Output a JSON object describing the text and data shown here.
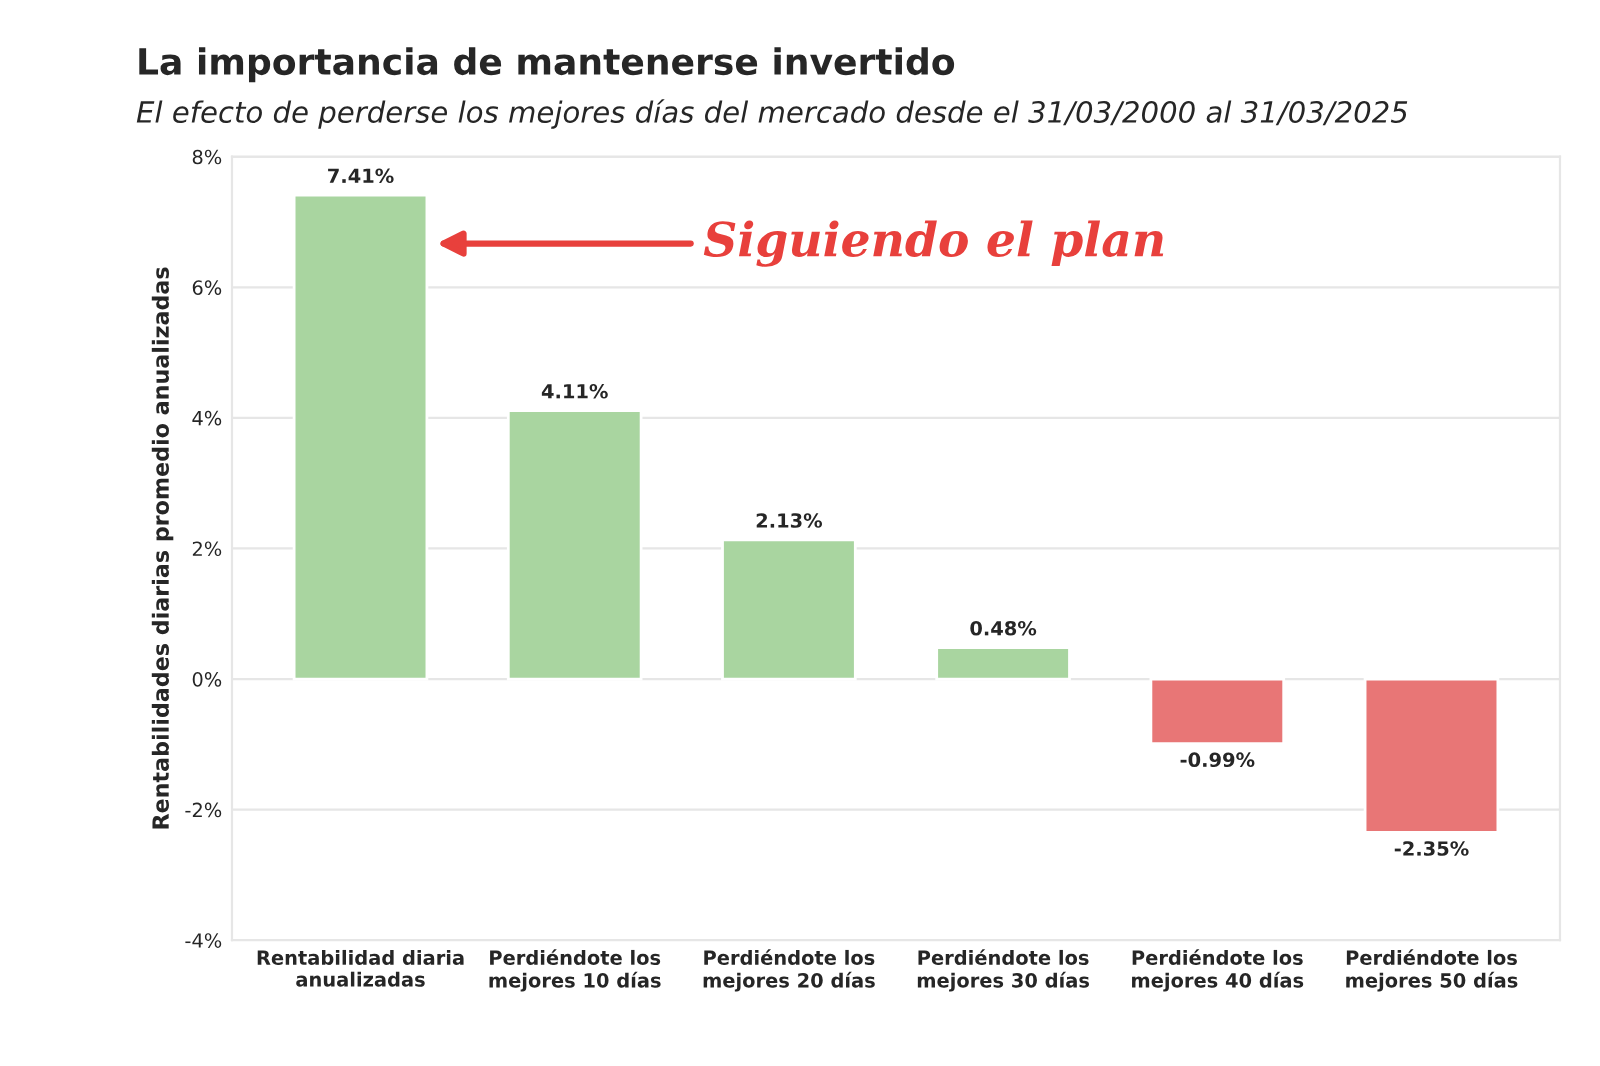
{
  "chart_data": {
    "type": "bar",
    "title": "La importancia de mantenerse invertido",
    "subtitle": "El efecto de perderse los mejores días del mercado desde el 31/03/2000 al 31/03/2025",
    "ylabel": "Rentabilidades diarias promedio anualizadas",
    "categories": [
      "Rentabilidad diaria\nanualizadas",
      "Perdiéndote los\nmejores 10 días",
      "Perdiéndote los\nmejores 20 días",
      "Perdiéndote los\nmejores 30 días",
      "Perdiéndote los\nmejores 40 días",
      "Perdiéndote los\nmejores 50 días"
    ],
    "values": [
      7.41,
      4.11,
      2.13,
      0.48,
      -0.99,
      -2.35
    ],
    "colors": [
      "#a9d5a0",
      "#a9d5a0",
      "#a9d5a0",
      "#a9d5a0",
      "#e87676",
      "#e87676"
    ],
    "value_labels": [
      "7.41%",
      "4.11%",
      "2.13%",
      "0.48%",
      "-0.99%",
      "-2.35%"
    ],
    "ylim": [
      -4,
      8
    ],
    "yticks": [
      {
        "value": -4,
        "label": "-4%"
      },
      {
        "value": -2,
        "label": "-2%"
      },
      {
        "value": 0,
        "label": "0%"
      },
      {
        "value": 2,
        "label": "2%"
      },
      {
        "value": 4,
        "label": "4%"
      },
      {
        "value": 6,
        "label": "6%"
      },
      {
        "value": 8,
        "label": "8%"
      }
    ],
    "grid": "y",
    "annotations": [
      "Siguiendo el plan"
    ]
  }
}
